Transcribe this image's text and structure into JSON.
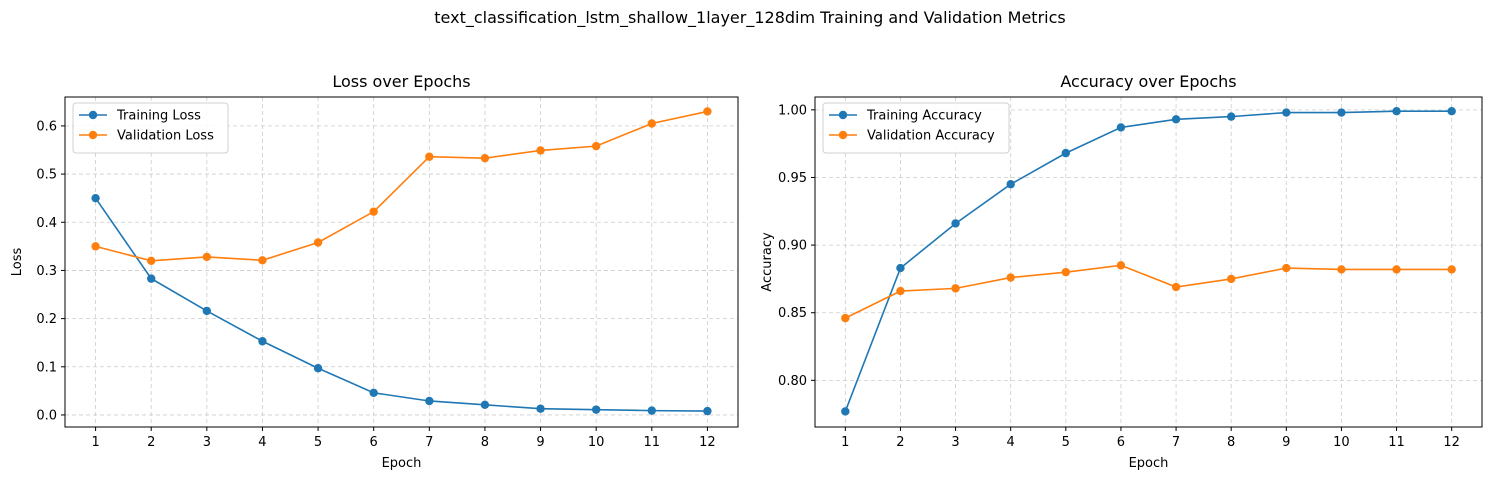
{
  "figure": {
    "title": "text_classification_lstm_shallow_1layer_128dim Training and Validation Metrics"
  },
  "colors": {
    "train": "#1f77b4",
    "val": "#ff7f0e",
    "grid": "#cccccc"
  },
  "chart_data": [
    {
      "type": "line",
      "title": "Loss over Epochs",
      "xlabel": "Epoch",
      "ylabel": "Loss",
      "x": [
        1,
        2,
        3,
        4,
        5,
        6,
        7,
        8,
        9,
        10,
        11,
        12
      ],
      "ylim": [
        -0.025,
        0.66
      ],
      "yticks": [
        0.0,
        0.1,
        0.2,
        0.3,
        0.4,
        0.5,
        0.6
      ],
      "ytick_labels": [
        "0.0",
        "0.1",
        "0.2",
        "0.3",
        "0.4",
        "0.5",
        "0.6"
      ],
      "grid": true,
      "legend": "upper-left",
      "series": [
        {
          "name": "Training Loss",
          "color": "#1f77b4",
          "values": [
            0.45,
            0.283,
            0.216,
            0.153,
            0.097,
            0.046,
            0.029,
            0.021,
            0.013,
            0.011,
            0.009,
            0.008
          ]
        },
        {
          "name": "Validation Loss",
          "color": "#ff7f0e",
          "values": [
            0.35,
            0.32,
            0.328,
            0.321,
            0.358,
            0.422,
            0.536,
            0.533,
            0.549,
            0.558,
            0.605,
            0.63
          ]
        }
      ]
    },
    {
      "type": "line",
      "title": "Accuracy over Epochs",
      "xlabel": "Epoch",
      "ylabel": "Accuracy",
      "x": [
        1,
        2,
        3,
        4,
        5,
        6,
        7,
        8,
        9,
        10,
        11,
        12
      ],
      "ylim": [
        0.7655,
        1.0095
      ],
      "yticks": [
        0.8,
        0.85,
        0.9,
        0.95,
        1.0
      ],
      "ytick_labels": [
        "0.80",
        "0.85",
        "0.90",
        "0.95",
        "1.00"
      ],
      "grid": true,
      "legend": "upper-left",
      "series": [
        {
          "name": "Training Accuracy",
          "color": "#1f77b4",
          "values": [
            0.777,
            0.883,
            0.916,
            0.945,
            0.968,
            0.987,
            0.993,
            0.995,
            0.998,
            0.998,
            0.999,
            0.999
          ]
        },
        {
          "name": "Validation Accuracy",
          "color": "#ff7f0e",
          "values": [
            0.846,
            0.866,
            0.868,
            0.876,
            0.88,
            0.885,
            0.869,
            0.875,
            0.883,
            0.882,
            0.882,
            0.882
          ]
        }
      ]
    }
  ]
}
